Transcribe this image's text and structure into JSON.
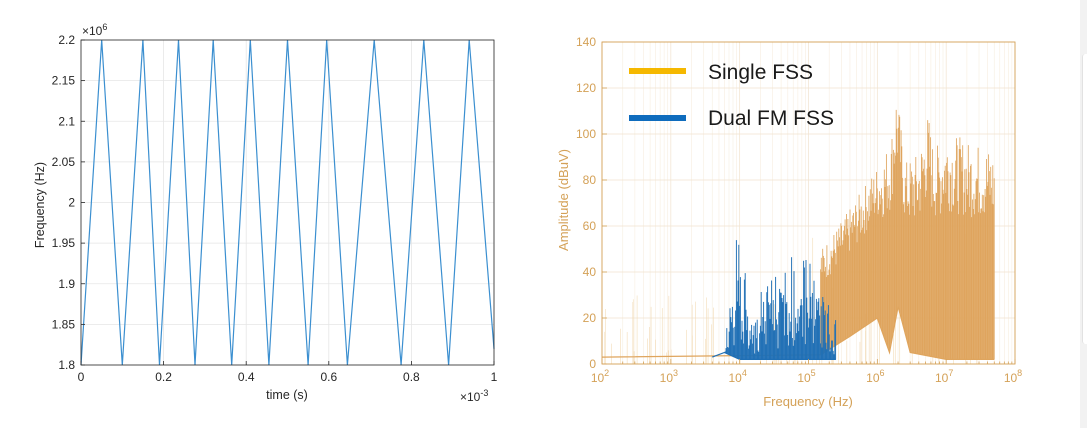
{
  "chart_data": [
    {
      "type": "line",
      "xlabel": "time (s)",
      "ylabel": "Frequency (Hz)",
      "x_multiplier": "×10",
      "x_multiplier_exp": "-3",
      "y_multiplier": "×10",
      "y_multiplier_exp": "6",
      "xlim": [
        0,
        1
      ],
      "ylim": [
        1.8,
        2.2
      ],
      "xticks": [
        0,
        0.2,
        0.4,
        0.6,
        0.8,
        1
      ],
      "xtick_labels": [
        "0",
        "0.2",
        "0.4",
        "0.6",
        "0.8",
        "1"
      ],
      "yticks": [
        1.8,
        1.85,
        1.9,
        1.95,
        2,
        2.05,
        2.1,
        2.15,
        2.2
      ],
      "ytick_labels": [
        "1.8",
        "1.85",
        "1.9",
        "1.95",
        "2",
        "2.05",
        "2.1",
        "2.15",
        "2.2"
      ],
      "grid": true,
      "series": [
        {
          "name": "Frequency",
          "color": "#3b8fd0",
          "x": [
            0,
            0.05,
            0.1,
            0.15,
            0.19,
            0.236,
            0.276,
            0.32,
            0.365,
            0.41,
            0.455,
            0.5,
            0.55,
            0.595,
            0.645,
            0.71,
            0.775,
            0.83,
            0.89,
            0.94,
            1.0
          ],
          "y": [
            1.8,
            2.2,
            1.8,
            2.2,
            1.8,
            2.2,
            1.8,
            2.2,
            1.8,
            2.2,
            1.8,
            2.2,
            1.8,
            2.2,
            1.8,
            2.2,
            1.8,
            2.2,
            1.8,
            2.2,
            1.82
          ]
        }
      ]
    },
    {
      "type": "area",
      "xlabel": "Frequency (Hz)",
      "ylabel": "Amplitude (dBuV)",
      "x_scale": "log",
      "xlim": [
        100,
        100000000
      ],
      "ylim": [
        0,
        140
      ],
      "xtick_exponents": [
        "2",
        "3",
        "4",
        "5",
        "6",
        "7",
        "8"
      ],
      "xtick_base": "10",
      "yticks": [
        0,
        20,
        40,
        60,
        80,
        100,
        120,
        140
      ],
      "ytick_labels": [
        "0",
        "20",
        "40",
        "60",
        "80",
        "100",
        "120",
        "140"
      ],
      "grid": true,
      "axis_color": "#d4a157",
      "legend_position": "top-left",
      "series": [
        {
          "name": "Single FSS",
          "legend_color": "#f5b800",
          "fill_color": "#dfa55e",
          "envelope": {
            "x": [
              150000,
              200000,
              300000,
              500000,
              800000,
              1200000,
              1600000,
              1900000,
              2100000,
              2500000,
              4000000,
              5500000,
              6500000,
              8000000,
              10000000,
              20000000,
              40000000,
              50000000
            ],
            "y": [
              50,
              55,
              62,
              72,
              82,
              90,
              100,
              121,
              110,
              88,
              92,
              110,
              95,
              96,
              102,
              97,
              95,
              93
            ]
          },
          "floor": {
            "x": [
              100,
              150000,
              400000,
              1000000,
              1500000,
              2000000,
              3000000,
              10000000,
              50000000
            ],
            "y": [
              3,
              4,
              12,
              20,
              5,
              25,
              5,
              2,
              2
            ]
          }
        },
        {
          "name": "Dual FM FSS",
          "legend_color": "#0f6cbd",
          "fill_color": "#1f6fb5",
          "envelope": {
            "x": [
              6000,
              8000,
              9000,
              10000,
              12000,
              14000,
              17000,
              22000,
              30000,
              50000,
              80000,
              120000,
              150000,
              200000,
              250000
            ],
            "y": [
              5,
              48,
              55,
              54,
              52,
              15,
              28,
              35,
              40,
              48,
              50,
              50,
              30,
              28,
              20
            ]
          },
          "floor": {
            "x": [
              4000,
              6000,
              10000,
              100000,
              250000
            ],
            "y": [
              3,
              5,
              2,
              2,
              2
            ]
          }
        }
      ]
    }
  ]
}
